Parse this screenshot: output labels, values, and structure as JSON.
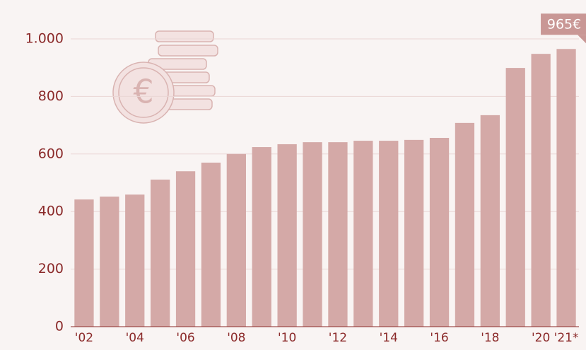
{
  "chart_data": {
    "type": "bar",
    "categories": [
      "'02",
      null,
      "'04",
      null,
      "'06",
      null,
      "'08",
      null,
      "'10",
      null,
      "'12",
      null,
      "'14",
      null,
      "'16",
      null,
      "'18",
      null,
      "'20",
      "'21*"
    ],
    "values": [
      442,
      452,
      459,
      511,
      540,
      570,
      600,
      624,
      634,
      641,
      641,
      646,
      646,
      649,
      656,
      708,
      735,
      899,
      948,
      965
    ],
    "value_labels": [
      null,
      null,
      null,
      null,
      null,
      null,
      null,
      null,
      null,
      null,
      null,
      null,
      null,
      null,
      null,
      null,
      null,
      null,
      null,
      "965€"
    ],
    "color": "#d4a9a7",
    "ylim": [
      0,
      1000
    ],
    "yticks": [
      0,
      200,
      400,
      600,
      800,
      {
        "value": 1000,
        "label": "1.000"
      }
    ],
    "grid": true
  }
}
